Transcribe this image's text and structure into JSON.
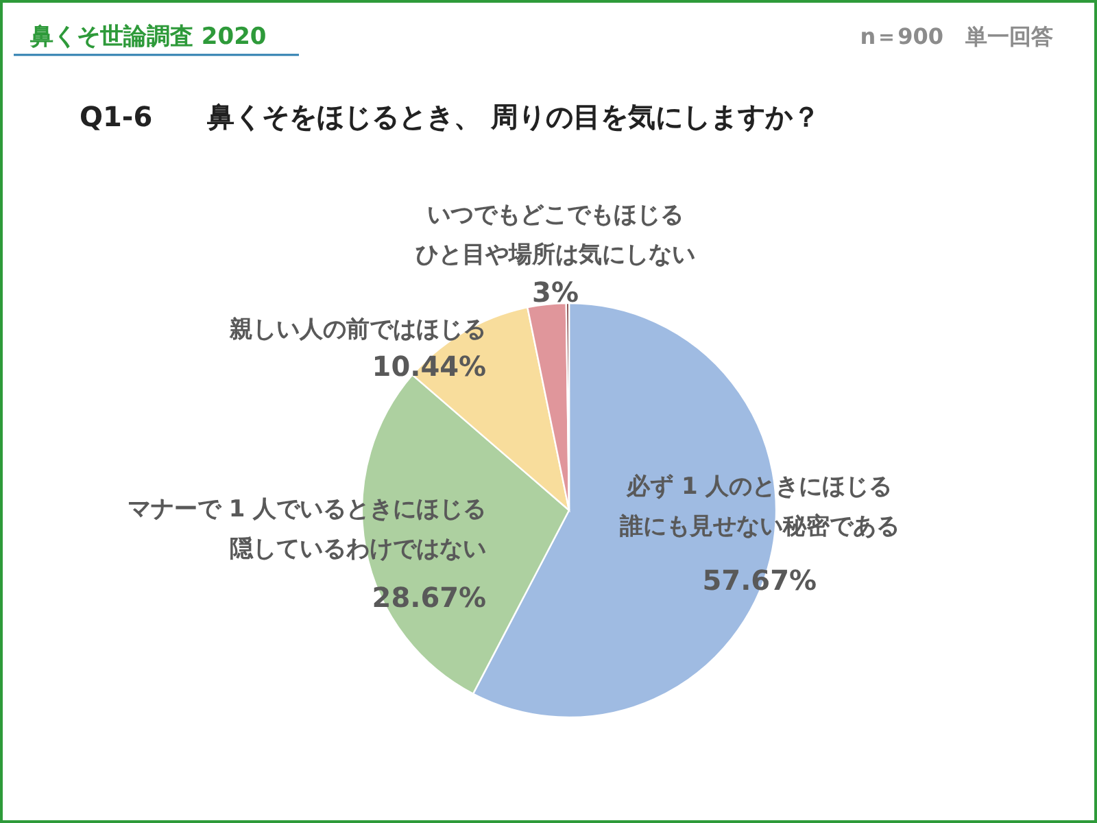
{
  "chart_data": {
    "type": "pie",
    "title": "Q1-6　　鼻くそをほじるとき、 周りの目を気にしますか？",
    "annotations": [
      "鼻くそ世論調査 2020",
      "n＝900　単一回答"
    ],
    "categories": [
      "必ず 1 人のときにほじる誰にも見せない秘密である",
      "マナーで 1 人でいるときにほじる隠しているわけではない",
      "親しい人の前ではほじる",
      "いつでもどこでもほじるひと目や場所は気にしない",
      null
    ],
    "values": [
      57.67,
      28.67,
      10.44,
      3,
      0.22
    ],
    "value_labels": [
      "57.67%",
      "28.67%",
      "10.44%",
      "3%",
      null
    ],
    "colors": [
      "#9fbbe2",
      "#add0a0",
      "#f8dd9c",
      "#e0969b",
      "#7a3b3b"
    ]
  }
}
